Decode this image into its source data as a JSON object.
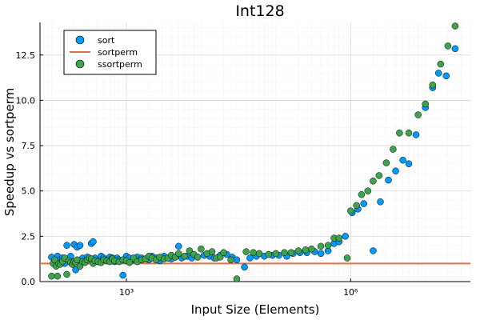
{
  "chart_data": {
    "type": "scatter",
    "title": "Int128",
    "xlabel": "Input Size (Elements)",
    "ylabel": "Speedup vs sortperm",
    "xscale": "log10",
    "xlim": [
      70,
      40000000
    ],
    "ylim": [
      0,
      14.3
    ],
    "x_ticks": [
      {
        "value": 1000,
        "label": "10³"
      },
      {
        "value": 1000000,
        "label": "10⁶"
      }
    ],
    "y_ticks": [
      {
        "value": 0,
        "label": "0.0"
      },
      {
        "value": 2.5,
        "label": "2.5"
      },
      {
        "value": 5,
        "label": "5.0"
      },
      {
        "value": 7.5,
        "label": "7.5"
      },
      {
        "value": 10,
        "label": "10.0"
      },
      {
        "value": 12.5,
        "label": "12.5"
      }
    ],
    "grid": true,
    "legend_position": "top-left",
    "series": [
      {
        "name": "sort",
        "kind": "scatter",
        "color": "#009AFA",
        "points": [
          [
            100,
            1.35
          ],
          [
            110,
            1.1
          ],
          [
            120,
            1.4
          ],
          [
            130,
            1.2
          ],
          [
            140,
            1.3
          ],
          [
            150,
            1.0
          ],
          [
            160,
            2.0
          ],
          [
            170,
            1.25
          ],
          [
            180,
            1.4
          ],
          [
            190,
            1.1
          ],
          [
            200,
            2.05
          ],
          [
            210,
            0.65
          ],
          [
            220,
            1.9
          ],
          [
            240,
            2.0
          ],
          [
            260,
            1.3
          ],
          [
            280,
            1.1
          ],
          [
            300,
            1.35
          ],
          [
            320,
            1.25
          ],
          [
            340,
            2.1
          ],
          [
            360,
            2.2
          ],
          [
            380,
            1.3
          ],
          [
            420,
            1.1
          ],
          [
            460,
            1.4
          ],
          [
            500,
            1.3
          ],
          [
            550,
            1.2
          ],
          [
            600,
            1.35
          ],
          [
            650,
            1.3
          ],
          [
            700,
            1.1
          ],
          [
            750,
            1.3
          ],
          [
            800,
            1.2
          ],
          [
            900,
            0.35
          ],
          [
            1000,
            1.4
          ],
          [
            1100,
            1.3
          ],
          [
            1250,
            1.2
          ],
          [
            1400,
            1.35
          ],
          [
            1600,
            1.3
          ],
          [
            1800,
            1.25
          ],
          [
            2000,
            1.2
          ],
          [
            2200,
            1.4
          ],
          [
            2500,
            1.3
          ],
          [
            2800,
            1.15
          ],
          [
            3200,
            1.4
          ],
          [
            3600,
            1.3
          ],
          [
            4000,
            1.25
          ],
          [
            4500,
            1.35
          ],
          [
            5000,
            1.95
          ],
          [
            5500,
            1.3
          ],
          [
            6500,
            1.4
          ],
          [
            7500,
            1.3
          ],
          [
            9000,
            1.35
          ],
          [
            11000,
            1.45
          ],
          [
            13000,
            1.4
          ],
          [
            15000,
            1.3
          ],
          [
            18000,
            1.45
          ],
          [
            22000,
            1.5
          ],
          [
            26000,
            1.35
          ],
          [
            30000,
            1.2
          ],
          [
            38000,
            0.8
          ],
          [
            45000,
            1.3
          ],
          [
            55000,
            1.4
          ],
          [
            70000,
            1.4
          ],
          [
            90000,
            1.45
          ],
          [
            110000,
            1.45
          ],
          [
            140000,
            1.4
          ],
          [
            170000,
            1.55
          ],
          [
            210000,
            1.6
          ],
          [
            260000,
            1.6
          ],
          [
            330000,
            1.65
          ],
          [
            400000,
            1.55
          ],
          [
            500000,
            1.7
          ],
          [
            600000,
            2.1
          ],
          [
            700000,
            2.2
          ],
          [
            850000,
            2.5
          ],
          [
            1050000,
            3.8
          ],
          [
            1250000,
            4.0
          ],
          [
            1500000,
            4.3
          ],
          [
            2000000,
            1.7
          ],
          [
            2500000,
            4.4
          ],
          [
            3200000,
            5.6
          ],
          [
            4000000,
            6.1
          ],
          [
            5000000,
            6.7
          ],
          [
            6000000,
            6.5
          ],
          [
            7500000,
            8.1
          ],
          [
            10000000,
            9.6
          ],
          [
            12500000,
            10.7
          ],
          [
            15000000,
            11.5
          ],
          [
            19000000,
            11.35
          ],
          [
            25000000,
            12.85
          ]
        ]
      },
      {
        "name": "sortperm",
        "kind": "line",
        "color": "#E26F46",
        "y": 1.0
      },
      {
        "name": "ssortperm",
        "kind": "scatter",
        "color": "#3DA44D",
        "points": [
          [
            100,
            0.3
          ],
          [
            105,
            1.0
          ],
          [
            110,
            1.2
          ],
          [
            115,
            0.85
          ],
          [
            120,
            0.3
          ],
          [
            125,
            1.0
          ],
          [
            130,
            0.95
          ],
          [
            140,
            1.1
          ],
          [
            150,
            1.3
          ],
          [
            160,
            0.4
          ],
          [
            170,
            1.15
          ],
          [
            180,
            1.05
          ],
          [
            190,
            0.95
          ],
          [
            200,
            1.1
          ],
          [
            210,
            1.05
          ],
          [
            220,
            1.2
          ],
          [
            240,
            0.85
          ],
          [
            260,
            1.1
          ],
          [
            280,
            1.05
          ],
          [
            300,
            1.2
          ],
          [
            320,
            1.3
          ],
          [
            340,
            1.25
          ],
          [
            360,
            1.0
          ],
          [
            380,
            1.15
          ],
          [
            420,
            1.1
          ],
          [
            460,
            1.05
          ],
          [
            500,
            1.2
          ],
          [
            550,
            1.15
          ],
          [
            600,
            1.1
          ],
          [
            650,
            1.25
          ],
          [
            700,
            1.15
          ],
          [
            800,
            1.1
          ],
          [
            900,
            1.2
          ],
          [
            1000,
            1.15
          ],
          [
            1100,
            1.05
          ],
          [
            1250,
            1.3
          ],
          [
            1400,
            1.1
          ],
          [
            1600,
            1.2
          ],
          [
            1800,
            1.25
          ],
          [
            2000,
            1.4
          ],
          [
            2200,
            1.3
          ],
          [
            2500,
            1.2
          ],
          [
            2800,
            1.35
          ],
          [
            3200,
            1.25
          ],
          [
            3600,
            1.3
          ],
          [
            4000,
            1.45
          ],
          [
            4500,
            1.35
          ],
          [
            5000,
            1.55
          ],
          [
            6000,
            1.4
          ],
          [
            7000,
            1.7
          ],
          [
            8000,
            1.5
          ],
          [
            9000,
            1.35
          ],
          [
            10000,
            1.8
          ],
          [
            12000,
            1.55
          ],
          [
            14000,
            1.65
          ],
          [
            16000,
            1.3
          ],
          [
            18000,
            1.35
          ],
          [
            20000,
            1.6
          ],
          [
            25000,
            1.2
          ],
          [
            30000,
            0.15
          ],
          [
            40000,
            1.65
          ],
          [
            50000,
            1.6
          ],
          [
            60000,
            1.55
          ],
          [
            80000,
            1.5
          ],
          [
            100000,
            1.55
          ],
          [
            130000,
            1.6
          ],
          [
            160000,
            1.6
          ],
          [
            200000,
            1.7
          ],
          [
            250000,
            1.75
          ],
          [
            300000,
            1.8
          ],
          [
            400000,
            1.95
          ],
          [
            500000,
            2.0
          ],
          [
            600000,
            2.4
          ],
          [
            700000,
            2.4
          ],
          [
            900000,
            1.3
          ],
          [
            1000000,
            3.9
          ],
          [
            1200000,
            4.2
          ],
          [
            1400000,
            4.8
          ],
          [
            1700000,
            5.0
          ],
          [
            2000000,
            5.55
          ],
          [
            2400000,
            5.85
          ],
          [
            3000000,
            6.55
          ],
          [
            3700000,
            7.3
          ],
          [
            4500000,
            8.2
          ],
          [
            6000000,
            8.2
          ],
          [
            8000000,
            9.2
          ],
          [
            10000000,
            9.8
          ],
          [
            12500000,
            10.85
          ],
          [
            16000000,
            12.0
          ],
          [
            20000000,
            13.0
          ],
          [
            25000000,
            14.1
          ]
        ]
      }
    ]
  }
}
